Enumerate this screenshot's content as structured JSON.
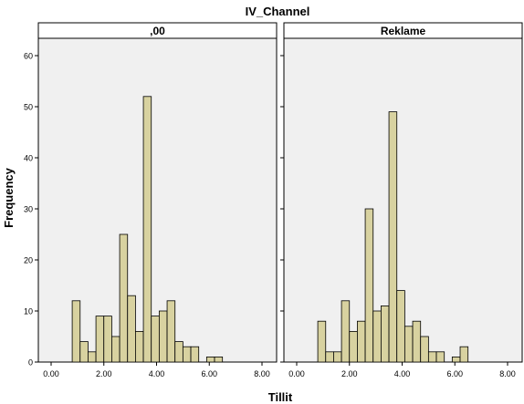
{
  "chart_data": {
    "type": "bar",
    "title": "IV_Channel",
    "xlabel": "Tillit",
    "ylabel": "Frequency",
    "xlim": [
      0,
      8
    ],
    "ylim": [
      0,
      60
    ],
    "x_ticks": [
      "0.00",
      "2.00",
      "4.00",
      "6.00",
      "8.00"
    ],
    "y_ticks": [
      "0",
      "10",
      "20",
      "30",
      "40",
      "50",
      "60"
    ],
    "bin_width": 0.3,
    "bin_start": 0.8,
    "bar_color": "#d8d2a0",
    "plot_background": "#f0f0f0",
    "panels": [
      {
        "label": ",00",
        "bins": [
          0.8,
          1.1,
          1.4,
          1.7,
          2.0,
          2.3,
          2.6,
          2.9,
          3.2,
          3.5,
          3.8,
          4.1,
          4.4,
          4.7,
          5.0,
          5.3,
          5.6,
          5.9,
          6.2,
          6.5,
          6.8,
          7.1
        ],
        "values": [
          12,
          4,
          2,
          9,
          9,
          5,
          25,
          13,
          6,
          52,
          9,
          10,
          12,
          4,
          3,
          3,
          0,
          1,
          1,
          0,
          0,
          0
        ]
      },
      {
        "label": "Reklame",
        "bins": [
          0.8,
          1.1,
          1.4,
          1.7,
          2.0,
          2.3,
          2.6,
          2.9,
          3.2,
          3.5,
          3.8,
          4.1,
          4.4,
          4.7,
          5.0,
          5.3,
          5.6,
          5.9,
          6.2,
          6.5,
          6.8,
          7.1
        ],
        "values": [
          8,
          2,
          2,
          12,
          6,
          8,
          30,
          10,
          11,
          49,
          14,
          7,
          8,
          5,
          2,
          2,
          0,
          1,
          3,
          0,
          0,
          0
        ]
      }
    ]
  }
}
